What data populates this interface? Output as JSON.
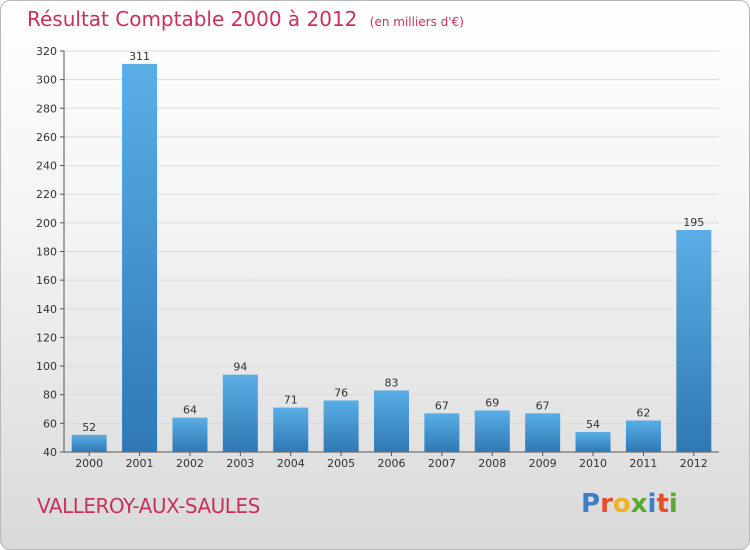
{
  "chart_data": {
    "type": "bar",
    "title": "Résultat Comptable 2000 à 2012",
    "subtitle": "(en milliers d'€)",
    "categories": [
      "2000",
      "2001",
      "2002",
      "2003",
      "2004",
      "2005",
      "2006",
      "2007",
      "2008",
      "2009",
      "2010",
      "2011",
      "2012"
    ],
    "values": [
      52,
      311,
      64,
      94,
      71,
      76,
      83,
      67,
      69,
      67,
      54,
      62,
      195
    ],
    "ylim": [
      40,
      320
    ],
    "yticks": [
      40,
      60,
      80,
      100,
      120,
      140,
      160,
      180,
      200,
      220,
      240,
      260,
      280,
      300,
      320
    ],
    "grid": true,
    "xlabel": "",
    "ylabel": ""
  },
  "footer": {
    "place": "VALLEROY-AUX-SAULES",
    "logo_letters": [
      "P",
      "r",
      "o",
      "x",
      "i",
      "t",
      "i"
    ],
    "logo_colors": [
      "#3a7fc8",
      "#e8502a",
      "#f0b21e",
      "#5aa832",
      "#3a7fc8",
      "#e8502a",
      "#5aa832"
    ]
  },
  "colors": {
    "bar_top": "#5aaee6",
    "bar_bottom": "#2f78b4",
    "title": "#c8325a"
  }
}
